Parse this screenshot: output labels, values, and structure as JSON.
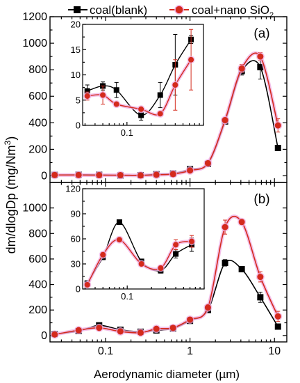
{
  "legend": {
    "entries": [
      {
        "label_main": "coal(blank)",
        "label_sub": "",
        "color": "#000000",
        "marker": "square"
      },
      {
        "label_main": "coal+nano SiO",
        "label_sub": "2",
        "color": "#d42a1c",
        "marker": "circle"
      }
    ],
    "placement": "top"
  },
  "ylabel": {
    "main": "dm/dlogDp (mg/Nm",
    "sup": "3",
    "close": ")"
  },
  "xlabel": "Aerodynamic diameter (µm)",
  "colors": {
    "blank": "#000000",
    "nano": "#d42a1c",
    "nano_glow": "#f0b0e4"
  },
  "chart_data": [
    {
      "type": "line",
      "panel_label": "(a)",
      "x_scale": "log",
      "xlim": [
        0.022,
        14
      ],
      "ylim": [
        -50,
        1200
      ],
      "xticks": [
        {
          "v": 0.1,
          "label": "0.1"
        },
        {
          "v": 1,
          "label": "1"
        },
        {
          "v": 10,
          "label": "10"
        }
      ],
      "yticks": [
        {
          "v": 0,
          "label": "0"
        },
        {
          "v": 200,
          "label": "200"
        },
        {
          "v": 400,
          "label": "400"
        },
        {
          "v": 600,
          "label": "600"
        },
        {
          "v": 800,
          "label": "800"
        },
        {
          "v": 1000,
          "label": "1000"
        },
        {
          "v": 1200,
          "label": "1200"
        }
      ],
      "x": [
        0.025,
        0.048,
        0.084,
        0.15,
        0.26,
        0.4,
        0.63,
        1.0,
        1.63,
        2.6,
        4.1,
        6.8,
        11
      ],
      "series": [
        {
          "name": "coal(blank)",
          "key": "blank",
          "values": [
            7,
            8,
            8,
            3,
            5,
            12,
            17,
            50,
            90,
            410,
            790,
            820,
            210
          ],
          "errors": [
            3,
            3,
            3,
            2,
            4,
            6,
            5,
            10,
            15,
            20,
            30,
            90,
            15
          ]
        },
        {
          "name": "coal+nano SiO2",
          "key": "nano",
          "values": [
            6,
            6,
            5,
            5,
            3,
            8,
            13,
            40,
            95,
            420,
            810,
            900,
            380
          ],
          "errors": [
            3,
            3,
            2,
            2,
            2,
            5,
            5,
            10,
            15,
            20,
            30,
            30,
            50
          ]
        }
      ],
      "inset": {
        "xlim": [
          0.028,
          0.9
        ],
        "ylim": [
          0,
          20
        ],
        "xticks": [
          {
            "v": 0.1,
            "label": "0.1"
          }
        ],
        "yticks": [
          {
            "v": 0,
            "label": "0"
          },
          {
            "v": 5,
            "label": "5"
          },
          {
            "v": 10,
            "label": "10"
          },
          {
            "v": 15,
            "label": "15"
          },
          {
            "v": 20,
            "label": "20"
          }
        ],
        "x": [
          0.032,
          0.05,
          0.074,
          0.15,
          0.26,
          0.4,
          0.63
        ],
        "series": [
          {
            "key": "blank",
            "values": [
              6.8,
              7.8,
              7.0,
              2.0,
              6.0,
              12.0,
              17.0
            ],
            "errors": [
              1.2,
              0.8,
              1.5,
              1.0,
              2.5,
              6.0,
              0.8
            ]
          },
          {
            "key": "nano",
            "values": [
              5.8,
              6.0,
              4.2,
              3.2,
              2.3,
              8.0,
              13.0
            ],
            "errors": [
              0.8,
              1.8,
              0.4,
              0.4,
              0.3,
              5.0,
              6.0
            ]
          }
        ]
      }
    },
    {
      "type": "line",
      "panel_label": "(b)",
      "x_scale": "log",
      "xlim": [
        0.022,
        14
      ],
      "ylim": [
        -50,
        1200
      ],
      "xticks": [
        {
          "v": 0.1,
          "label": "0.1"
        },
        {
          "v": 1,
          "label": "1"
        },
        {
          "v": 10,
          "label": "10"
        }
      ],
      "yticks": [
        {
          "v": 0,
          "label": "0"
        },
        {
          "v": 200,
          "label": "200"
        },
        {
          "v": 400,
          "label": "400"
        },
        {
          "v": 600,
          "label": "600"
        },
        {
          "v": 800,
          "label": "800"
        },
        {
          "v": 1000,
          "label": "1000"
        }
      ],
      "x": [
        0.025,
        0.048,
        0.084,
        0.15,
        0.26,
        0.4,
        0.63,
        1.0,
        1.63,
        2.6,
        4.1,
        6.8,
        11
      ],
      "series": [
        {
          "name": "coal(blank)",
          "key": "blank",
          "values": [
            12,
            35,
            80,
            45,
            30,
            40,
            55,
            115,
            200,
            570,
            520,
            300,
            70
          ],
          "errors": [
            8,
            10,
            12,
            10,
            8,
            10,
            12,
            15,
            20,
            25,
            20,
            40,
            20
          ]
        },
        {
          "name": "coal+nano SiO2",
          "key": "nano",
          "values": [
            8,
            42,
            60,
            32,
            22,
            53,
            60,
            125,
            220,
            850,
            890,
            460,
            150
          ],
          "errors": [
            8,
            10,
            15,
            10,
            8,
            12,
            12,
            18,
            25,
            55,
            15,
            40,
            40
          ]
        }
      ],
      "inset": {
        "xlim": [
          0.028,
          0.9
        ],
        "ylim": [
          0,
          120
        ],
        "xticks": [
          {
            "v": 0.1,
            "label": "0.1"
          }
        ],
        "yticks": [
          {
            "v": 0,
            "label": "0"
          },
          {
            "v": 30,
            "label": "30"
          },
          {
            "v": 60,
            "label": "60"
          },
          {
            "v": 90,
            "label": "90"
          },
          {
            "v": 120,
            "label": "120"
          }
        ],
        "x": [
          0.032,
          0.05,
          0.08,
          0.15,
          0.26,
          0.4,
          0.63
        ],
        "series": [
          {
            "key": "blank",
            "values": [
              7,
              38,
              80,
              33,
              22,
              42,
              53
            ],
            "errors": [
              2,
              3,
              2,
              2,
              3,
              5,
              8
            ]
          },
          {
            "key": "nano",
            "values": [
              5,
              41,
              59,
              30,
              25,
              53,
              57
            ],
            "errors": [
              2,
              3,
              2,
              2,
              3,
              6,
              7
            ]
          }
        ]
      }
    }
  ]
}
